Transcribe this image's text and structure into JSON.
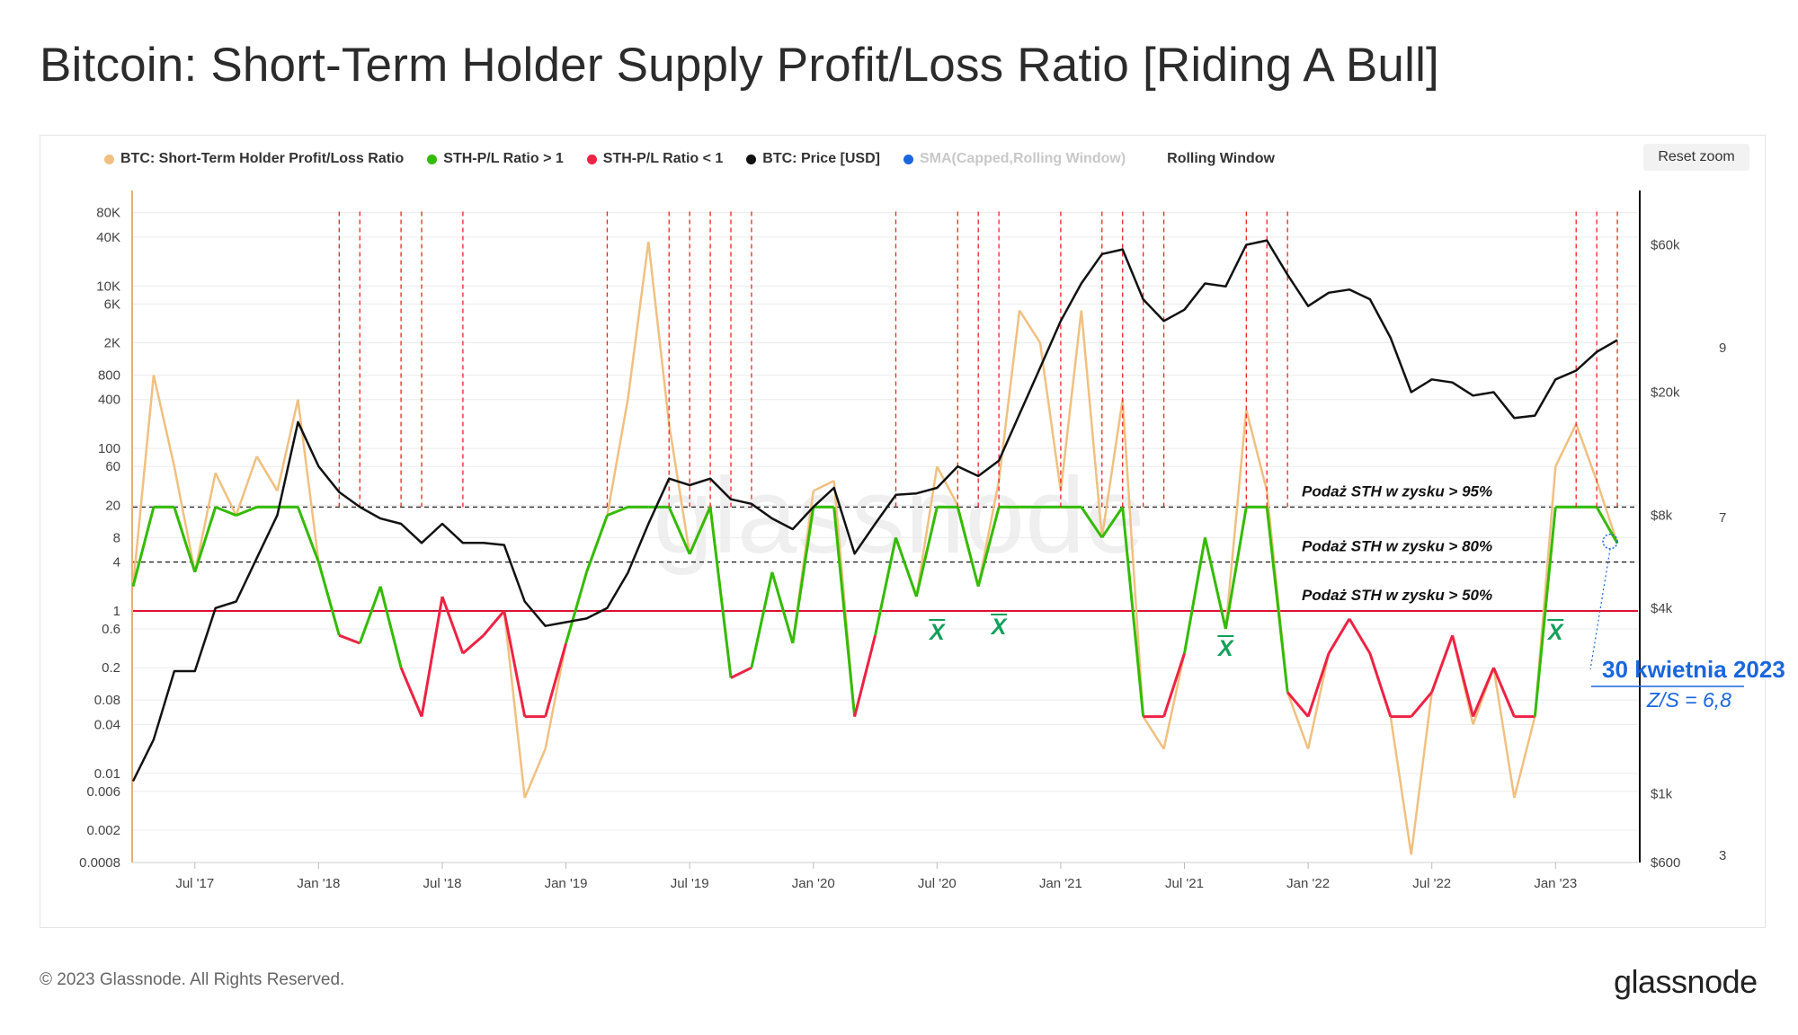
{
  "title": "Bitcoin: Short-Term Holder Supply Profit/Loss Ratio [Riding A Bull]",
  "reset_zoom": "Reset zoom",
  "copyright": "© 2023 Glassnode. All Rights Reserved.",
  "brand": "glassnode",
  "watermark": "glassnode",
  "legend": [
    {
      "label": "BTC: Short-Term Holder Profit/Loss Ratio",
      "color": "#f0c080"
    },
    {
      "label": "STH-P/L Ratio > 1",
      "color": "#33bb00"
    },
    {
      "label": "STH-P/L Ratio < 1",
      "color": "#ee2244"
    },
    {
      "label": "BTC: Price [USD]",
      "color": "#111111"
    },
    {
      "label": "SMA(Capped,Rolling Window)",
      "color": "#1a66dd",
      "dimmed": true
    },
    {
      "label": "Rolling Window",
      "color": null
    }
  ],
  "chart_data": {
    "type": "line",
    "x_axis": {
      "tick_labels": [
        "Jul '17",
        "Jan '18",
        "Jul '18",
        "Jan '19",
        "Jul '19",
        "Jan '20",
        "Jul '20",
        "Jan '21",
        "Jul '21",
        "Jan '22",
        "Jul '22",
        "Jan '23"
      ],
      "range": [
        "2017-04",
        "2023-05"
      ]
    },
    "y_left": {
      "scale": "log",
      "range": [
        0.0008,
        150000
      ],
      "tick_labels": [
        "80K",
        "40K",
        "10K",
        "6K",
        "2K",
        "800",
        "400",
        "100",
        "60",
        "20",
        "8",
        "4",
        "1",
        "0.6",
        "0.2",
        "0.08",
        "0.04",
        "0.01",
        "0.006",
        "0.002",
        "0.0008"
      ],
      "tick_values": [
        80000,
        40000,
        10000,
        6000,
        2000,
        800,
        400,
        100,
        60,
        20,
        8,
        4,
        1,
        0.6,
        0.2,
        0.08,
        0.04,
        0.01,
        0.006,
        0.002,
        0.0008
      ]
    },
    "y_price": {
      "scale": "log",
      "range": [
        600,
        90000
      ],
      "tick_labels": [
        "$60k",
        "$20k",
        "$8k",
        "$4k",
        "$1k",
        "$600"
      ],
      "tick_values": [
        60000,
        20000,
        8000,
        4000,
        1000,
        600
      ]
    },
    "y_rolling": {
      "tick_labels": [
        "9",
        "7",
        "3"
      ],
      "tick_values": [
        9,
        7,
        3
      ]
    },
    "threshold_lines": [
      {
        "label": "Podaż STH w zysku > 95%",
        "ratio": 19
      },
      {
        "label": "Podaż STH w zysku > 80%",
        "ratio": 4
      },
      {
        "label": "Podaż STH w zysku > 50%",
        "ratio": 1
      }
    ],
    "annotation": {
      "date_label": "30 kwietnia  2023",
      "value_label": "Z/S = 6,8"
    },
    "x_bar_marks": [
      "X",
      "X",
      "X",
      "X"
    ],
    "peak_marker_dates": [
      "2018-02",
      "2018-03",
      "2018-05",
      "2018-06",
      "2018-08",
      "2019-03",
      "2019-06",
      "2019-07",
      "2019-08",
      "2019-09",
      "2019-10",
      "2020-05",
      "2020-08",
      "2020-09",
      "2020-10",
      "2021-01",
      "2021-03",
      "2021-04",
      "2021-05",
      "2021-06",
      "2021-10",
      "2021-11",
      "2021-12",
      "2023-02",
      "2023-03",
      "2023-04"
    ],
    "series": [
      {
        "name": "BTC: Price [USD]",
        "axis": "price",
        "x": [
          "2017-04",
          "2017-05",
          "2017-06",
          "2017-07",
          "2017-08",
          "2017-09",
          "2017-10",
          "2017-11",
          "2017-12",
          "2018-01",
          "2018-02",
          "2018-03",
          "2018-04",
          "2018-05",
          "2018-06",
          "2018-07",
          "2018-08",
          "2018-09",
          "2018-10",
          "2018-11",
          "2018-12",
          "2019-01",
          "2019-02",
          "2019-03",
          "2019-04",
          "2019-05",
          "2019-06",
          "2019-07",
          "2019-08",
          "2019-09",
          "2019-10",
          "2019-11",
          "2019-12",
          "2020-01",
          "2020-02",
          "2020-03",
          "2020-04",
          "2020-05",
          "2020-06",
          "2020-07",
          "2020-08",
          "2020-09",
          "2020-10",
          "2020-11",
          "2020-12",
          "2021-01",
          "2021-02",
          "2021-03",
          "2021-04",
          "2021-05",
          "2021-06",
          "2021-07",
          "2021-08",
          "2021-09",
          "2021-10",
          "2021-11",
          "2021-12",
          "2022-01",
          "2022-02",
          "2022-03",
          "2022-04",
          "2022-05",
          "2022-06",
          "2022-07",
          "2022-08",
          "2022-09",
          "2022-10",
          "2022-11",
          "2022-12",
          "2023-01",
          "2023-02",
          "2023-03",
          "2023-04"
        ],
        "values": [
          1100,
          1500,
          2500,
          2500,
          4000,
          4200,
          5800,
          8000,
          16000,
          11500,
          9500,
          8500,
          7800,
          7500,
          6500,
          7500,
          6500,
          6500,
          6400,
          4200,
          3500,
          3600,
          3700,
          4000,
          5200,
          7500,
          10500,
          10000,
          10500,
          9000,
          8700,
          7800,
          7200,
          8500,
          9800,
          6000,
          7500,
          9300,
          9400,
          9800,
          11500,
          10700,
          12000,
          17000,
          24000,
          34000,
          45000,
          56000,
          58000,
          40000,
          34000,
          37000,
          45000,
          44000,
          60000,
          62000,
          48000,
          38000,
          42000,
          43000,
          40000,
          30000,
          20000,
          22000,
          21500,
          19500,
          20000,
          16500,
          16800,
          22000,
          23500,
          27000,
          29500
        ]
      },
      {
        "name": "BTC: Short-Term Holder Profit/Loss Ratio",
        "axis": "ratio",
        "x": [
          "2017-04",
          "2017-05",
          "2017-06",
          "2017-07",
          "2017-08",
          "2017-09",
          "2017-10",
          "2017-11",
          "2017-12",
          "2018-01",
          "2018-02",
          "2018-03",
          "2018-04",
          "2018-05",
          "2018-06",
          "2018-07",
          "2018-08",
          "2018-09",
          "2018-10",
          "2018-11",
          "2018-12",
          "2019-01",
          "2019-02",
          "2019-03",
          "2019-04",
          "2019-05",
          "2019-06",
          "2019-07",
          "2019-08",
          "2019-09",
          "2019-10",
          "2019-11",
          "2019-12",
          "2020-01",
          "2020-02",
          "2020-03",
          "2020-04",
          "2020-05",
          "2020-06",
          "2020-07",
          "2020-08",
          "2020-09",
          "2020-10",
          "2020-11",
          "2020-12",
          "2021-01",
          "2021-02",
          "2021-03",
          "2021-04",
          "2021-05",
          "2021-06",
          "2021-07",
          "2021-08",
          "2021-09",
          "2021-10",
          "2021-11",
          "2021-12",
          "2022-01",
          "2022-02",
          "2022-03",
          "2022-04",
          "2022-05",
          "2022-06",
          "2022-07",
          "2022-08",
          "2022-09",
          "2022-10",
          "2022-11",
          "2022-12",
          "2023-01",
          "2023-02",
          "2023-03",
          "2023-04"
        ],
        "values": [
          2,
          800,
          60,
          3,
          50,
          15,
          80,
          30,
          400,
          4,
          0.5,
          0.4,
          2,
          0.2,
          0.05,
          1.5,
          0.3,
          0.5,
          1,
          0.005,
          0.02,
          0.4,
          3,
          15,
          400,
          35000,
          200,
          5,
          20,
          0.15,
          0.2,
          3,
          0.4,
          30,
          40,
          0.05,
          0.5,
          8,
          1.5,
          60,
          20,
          2,
          40,
          5000,
          2000,
          30,
          5000,
          8,
          400,
          0.05,
          0.02,
          0.3,
          8,
          0.6,
          300,
          30,
          0.1,
          0.02,
          0.3,
          0.8,
          0.3,
          0.05,
          0.001,
          0.1,
          0.5,
          0.04,
          0.2,
          0.005,
          0.05,
          60,
          200,
          40,
          6.8
        ]
      }
    ]
  }
}
